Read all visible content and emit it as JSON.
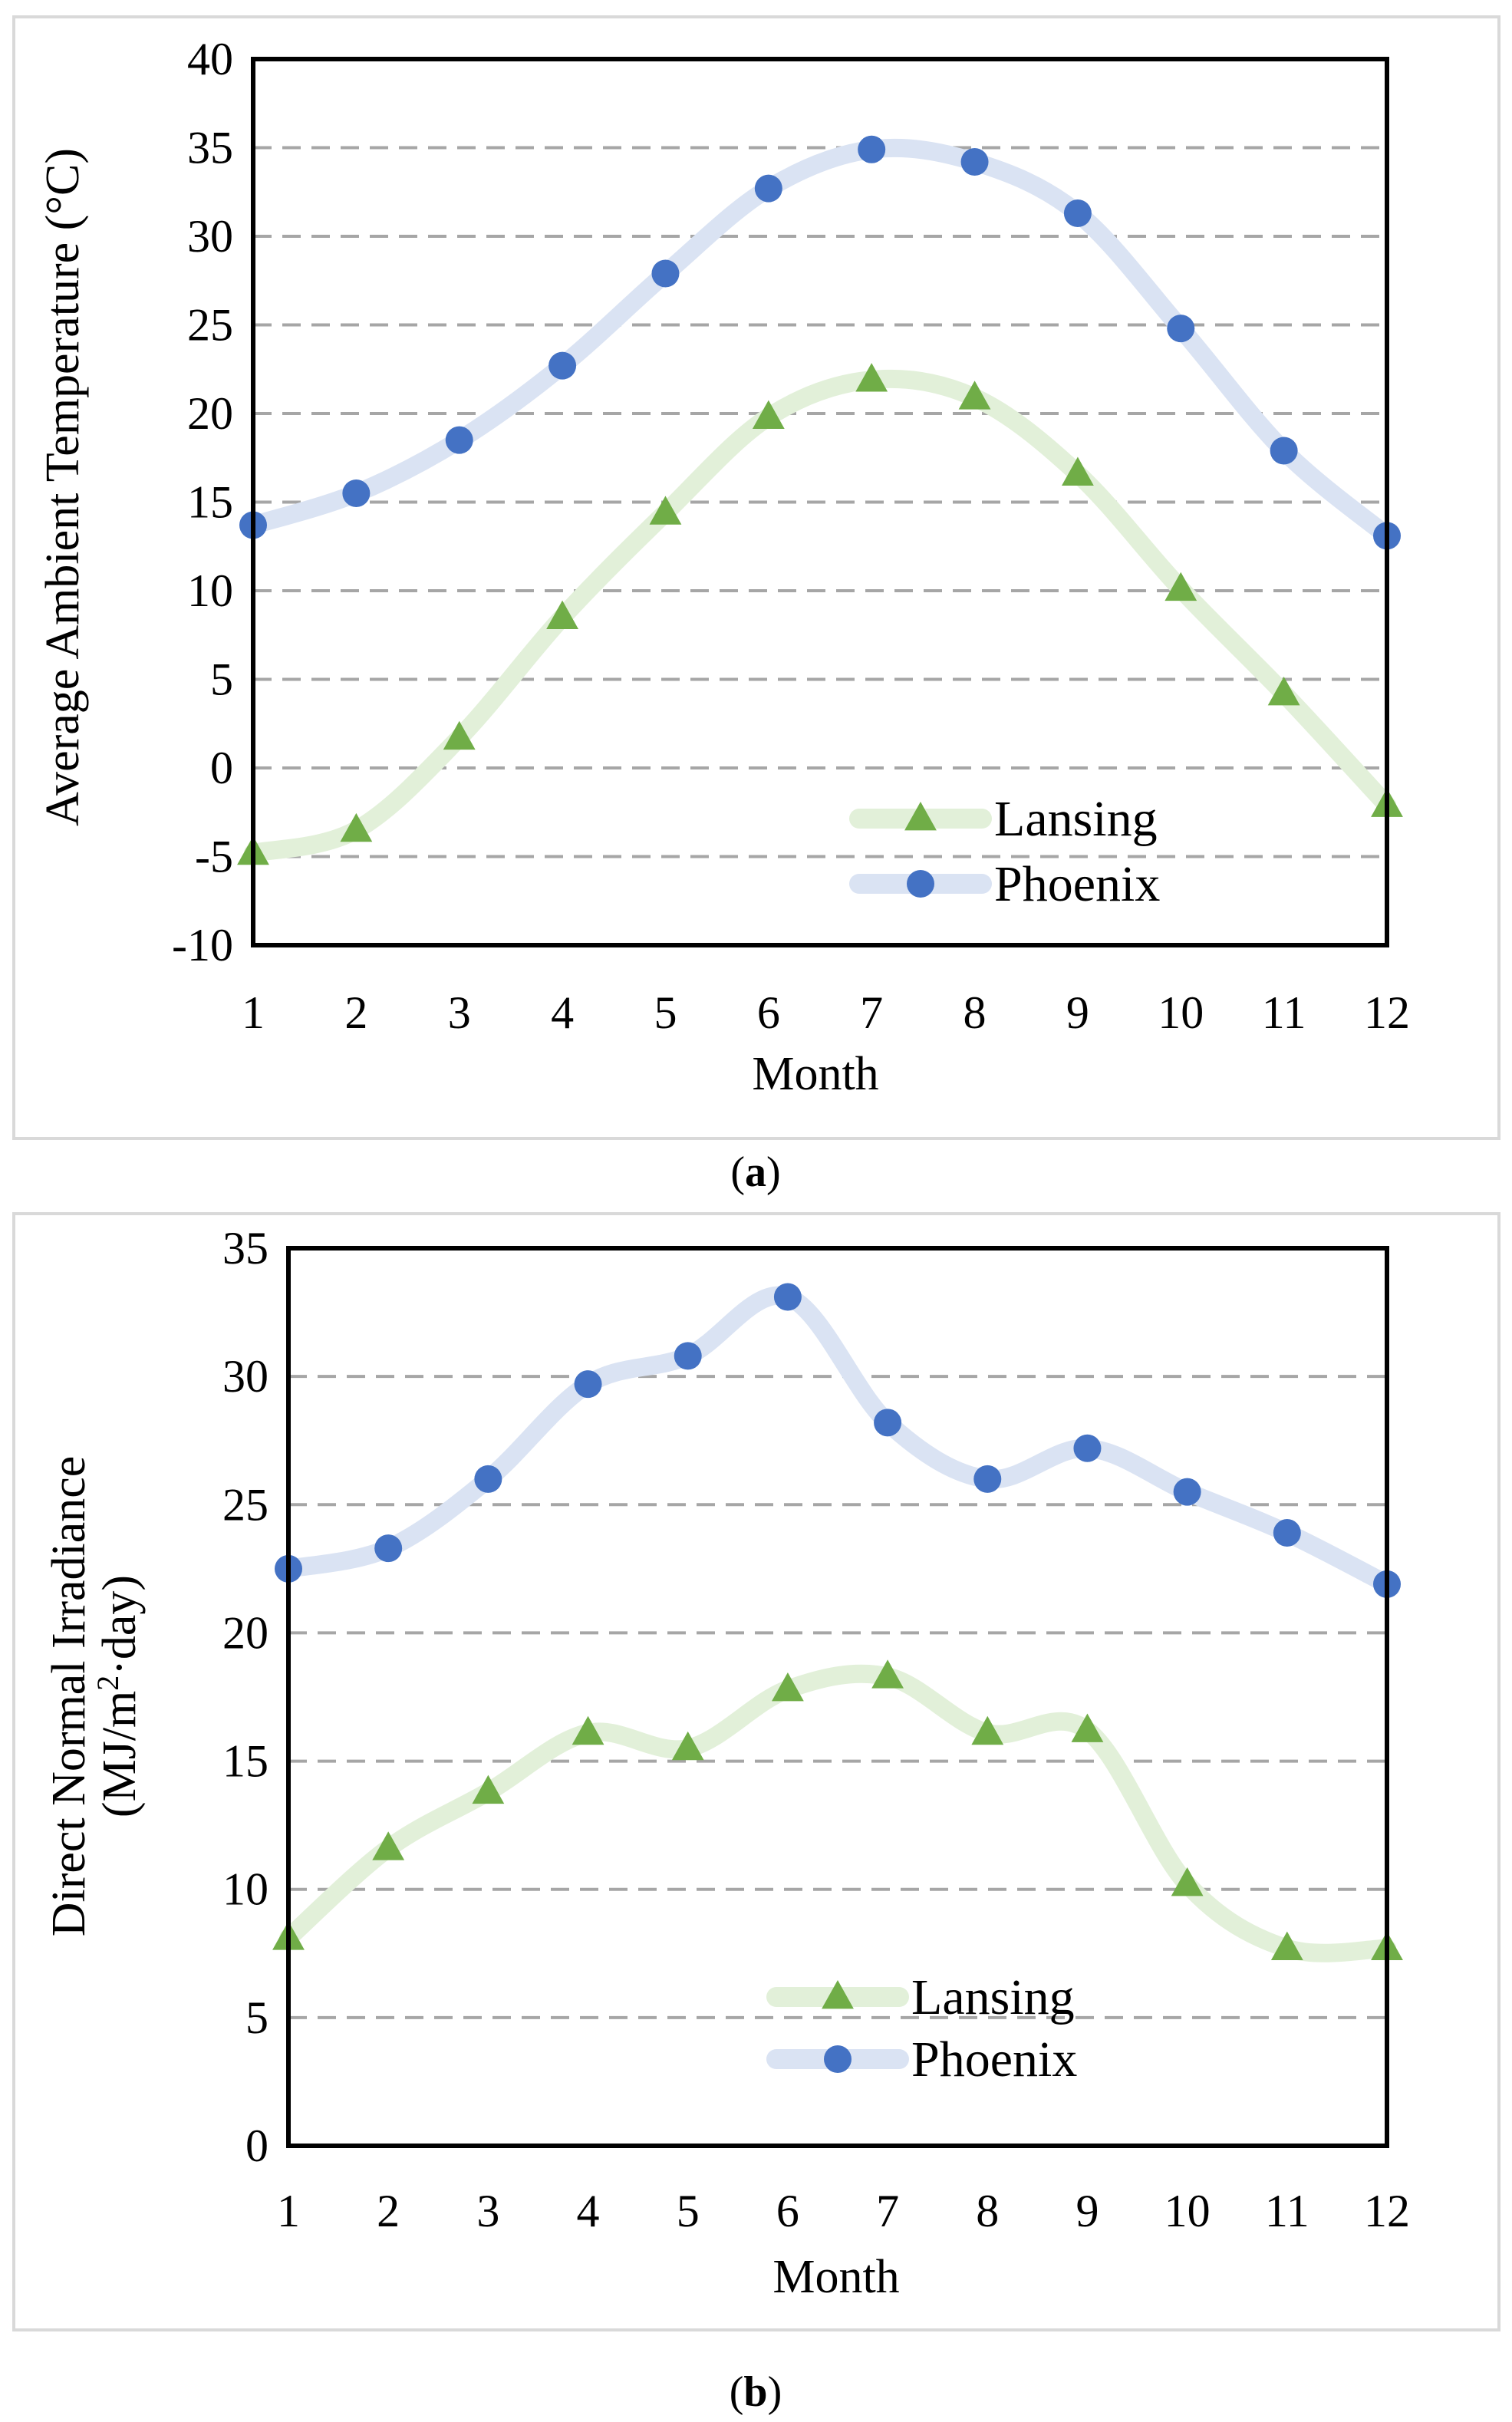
{
  "chart_data": [
    {
      "type": "line",
      "panel": "a",
      "panel_caption": {
        "open": "(",
        "letter": "a",
        "close": ")"
      },
      "title": "",
      "xlabel": "Month",
      "ylabel": "Average Ambient Temperature (°C)",
      "ylim": [
        -10,
        40
      ],
      "yticks": [
        "40",
        "35",
        "30",
        "25",
        "20",
        "15",
        "10",
        "5",
        "0",
        "-5",
        "-10"
      ],
      "ytick_values": [
        40,
        35,
        30,
        25,
        20,
        15,
        10,
        5,
        0,
        -5,
        -10
      ],
      "x": [
        1,
        2,
        3,
        4,
        5,
        6,
        7,
        8,
        9,
        10,
        11,
        12
      ],
      "xticks": [
        "1",
        "2",
        "3",
        "4",
        "5",
        "6",
        "7",
        "8",
        "9",
        "10",
        "11",
        "12"
      ],
      "grid": "horizontal dashed",
      "legend_position": "bottom-right",
      "series": [
        {
          "name": "Lansing",
          "marker": "triangle",
          "marker_color": "#70AD47",
          "line_color": "#E2F0D9",
          "values": [
            -4.8,
            -3.5,
            1.7,
            8.5,
            14.4,
            19.8,
            21.9,
            20.9,
            16.6,
            10.1,
            4.2,
            -2.1
          ]
        },
        {
          "name": "Phoenix",
          "marker": "circle",
          "marker_color": "#4472C4",
          "line_color": "#DAE3F3",
          "values": [
            13.7,
            15.5,
            18.5,
            22.7,
            27.9,
            32.7,
            34.9,
            34.2,
            31.3,
            24.8,
            17.9,
            13.1
          ]
        }
      ]
    },
    {
      "type": "line",
      "panel": "b",
      "panel_caption": {
        "open": "(",
        "letter": "b",
        "close": ")"
      },
      "title": "",
      "xlabel": "Month",
      "ylabel_line1": "Direct Normal Irradiance",
      "ylabel_line2": {
        "prefix": "(MJ/m",
        "sup": "2",
        "suffix": "·day)"
      },
      "ylim": [
        0,
        35
      ],
      "yticks": [
        "35",
        "30",
        "25",
        "20",
        "15",
        "10",
        "5",
        "0"
      ],
      "ytick_values": [
        35,
        30,
        25,
        20,
        15,
        10,
        5,
        0
      ],
      "x": [
        1,
        2,
        3,
        4,
        5,
        6,
        7,
        8,
        9,
        10,
        11,
        12
      ],
      "xticks": [
        "1",
        "2",
        "3",
        "4",
        "5",
        "6",
        "7",
        "8",
        "9",
        "10",
        "11",
        "12"
      ],
      "grid": "horizontal dashed",
      "legend_position": "bottom-center",
      "series": [
        {
          "name": "Lansing",
          "marker": "triangle",
          "marker_color": "#70AD47",
          "line_color": "#E2F0D9",
          "values": [
            8.1,
            11.6,
            13.8,
            16.1,
            15.5,
            17.8,
            18.3,
            16.1,
            16.2,
            10.2,
            7.7,
            7.7
          ]
        },
        {
          "name": "Phoenix",
          "marker": "circle",
          "marker_color": "#4472C4",
          "line_color": "#DAE3F3",
          "values": [
            22.5,
            23.3,
            26.0,
            29.7,
            30.8,
            33.1,
            28.2,
            26.0,
            27.2,
            25.5,
            23.9,
            21.9
          ]
        }
      ]
    }
  ]
}
